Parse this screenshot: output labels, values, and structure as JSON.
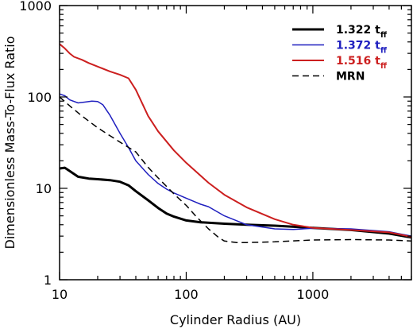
{
  "chart_data": {
    "type": "line",
    "xlabel": "Cylinder Radius (AU)",
    "ylabel": "Dimensionless Mass-To-Flux Ratio",
    "xscale": "log",
    "yscale": "log",
    "xlim": [
      10,
      6000
    ],
    "ylim": [
      1,
      1000
    ],
    "x_ticks": [
      {
        "value": 10,
        "label": "10"
      },
      {
        "value": 100,
        "label": "100"
      },
      {
        "value": 1000,
        "label": "1000"
      }
    ],
    "y_ticks": [
      {
        "value": 1,
        "label": "1"
      },
      {
        "value": 10,
        "label": "10"
      },
      {
        "value": 100,
        "label": "100"
      },
      {
        "value": 1000,
        "label": "1000"
      }
    ],
    "legend_position": "top-right",
    "series": [
      {
        "name": "1.322 t",
        "name_sub": "ff",
        "color": "#000000",
        "dash": "solid",
        "width": 3,
        "x": [
          10,
          11,
          12,
          14,
          17,
          20,
          25,
          30,
          35,
          40,
          50,
          60,
          70,
          80,
          100,
          130,
          200,
          300,
          500,
          1000,
          2000,
          4000,
          6000
        ],
        "y": [
          16.5,
          16.8,
          15.5,
          13.4,
          12.8,
          12.6,
          12.3,
          11.8,
          10.8,
          9.3,
          7.4,
          6.1,
          5.3,
          4.9,
          4.45,
          4.25,
          4.1,
          4.0,
          3.9,
          3.7,
          3.5,
          3.2,
          2.9
        ]
      },
      {
        "name": "1.372 t",
        "name_sub": "ff",
        "color": "#1f1fbf",
        "dash": "solid",
        "width": 1.5,
        "x": [
          10,
          11,
          12,
          14,
          16,
          18,
          20,
          22,
          25,
          30,
          35,
          40,
          50,
          60,
          70,
          80,
          100,
          130,
          150,
          200,
          300,
          500,
          700,
          1000,
          2000,
          4000,
          6000
        ],
        "y": [
          108,
          103,
          93,
          86,
          88,
          90,
          89,
          82,
          63,
          40,
          28,
          20,
          14.2,
          11.3,
          9.8,
          8.9,
          7.8,
          6.7,
          6.3,
          5.0,
          4.0,
          3.6,
          3.55,
          3.65,
          3.6,
          3.35,
          3.0
        ]
      },
      {
        "name": "1.516 t",
        "name_sub": "ff",
        "color": "#cc1f1f",
        "dash": "solid",
        "width": 2,
        "x": [
          10,
          11,
          12,
          13,
          15,
          17,
          20,
          25,
          30,
          35,
          40,
          50,
          60,
          80,
          100,
          150,
          200,
          300,
          500,
          700,
          1000,
          2000,
          4000,
          6000
        ],
        "y": [
          380,
          340,
          300,
          275,
          255,
          235,
          215,
          190,
          175,
          160,
          120,
          62,
          42,
          26,
          19,
          11.5,
          8.5,
          6.2,
          4.6,
          4.0,
          3.7,
          3.5,
          3.3,
          2.95
        ]
      },
      {
        "name": "MRN",
        "color": "#000000",
        "dash": "dashed",
        "width": 1.5,
        "x": [
          10,
          12,
          15,
          20,
          30,
          40,
          50,
          60,
          80,
          100,
          120,
          150,
          180,
          200,
          250,
          300,
          500,
          1000,
          2000,
          4000,
          6000
        ],
        "y": [
          100,
          80,
          62,
          46,
          32,
          25,
          17,
          13,
          8.7,
          6.5,
          4.9,
          3.6,
          2.9,
          2.65,
          2.55,
          2.55,
          2.6,
          2.72,
          2.75,
          2.72,
          2.65
        ]
      }
    ]
  }
}
